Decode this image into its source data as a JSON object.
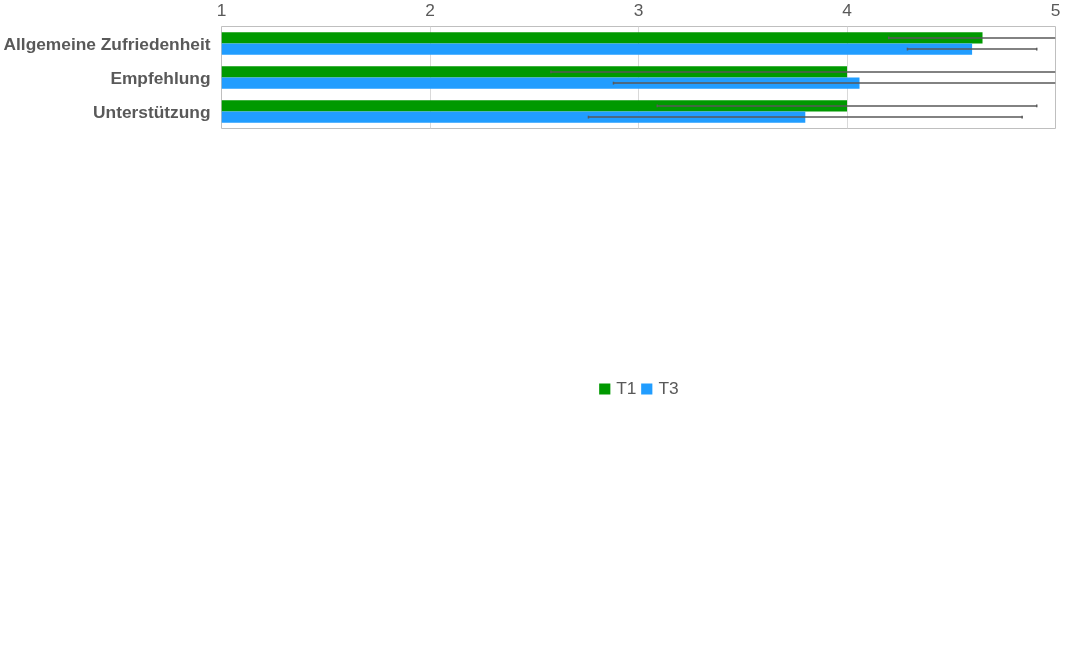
{
  "chart_data": {
    "type": "bar",
    "orientation": "horizontal",
    "categories": [
      "Allgemeine Zufriedenheit",
      "Empfehlung",
      "Unterstützung"
    ],
    "series": [
      {
        "name": "T1",
        "color": "#009900",
        "values": [
          4.65,
          4.0,
          4.0
        ],
        "errors": [
          [
            4.2,
            5
          ],
          [
            2.58,
            5
          ],
          [
            3.09,
            4.91
          ]
        ]
      },
      {
        "name": "T3",
        "color": "#219dff",
        "values": [
          4.6,
          4.06,
          3.8
        ],
        "errors": [
          [
            4.29,
            4.91
          ],
          [
            2.88,
            5
          ],
          [
            2.76,
            4.84
          ]
        ]
      }
    ],
    "xlim": [
      1,
      5
    ],
    "xticks": [
      1,
      2,
      3,
      4,
      5
    ],
    "grid": "x",
    "legend": "bottom"
  }
}
